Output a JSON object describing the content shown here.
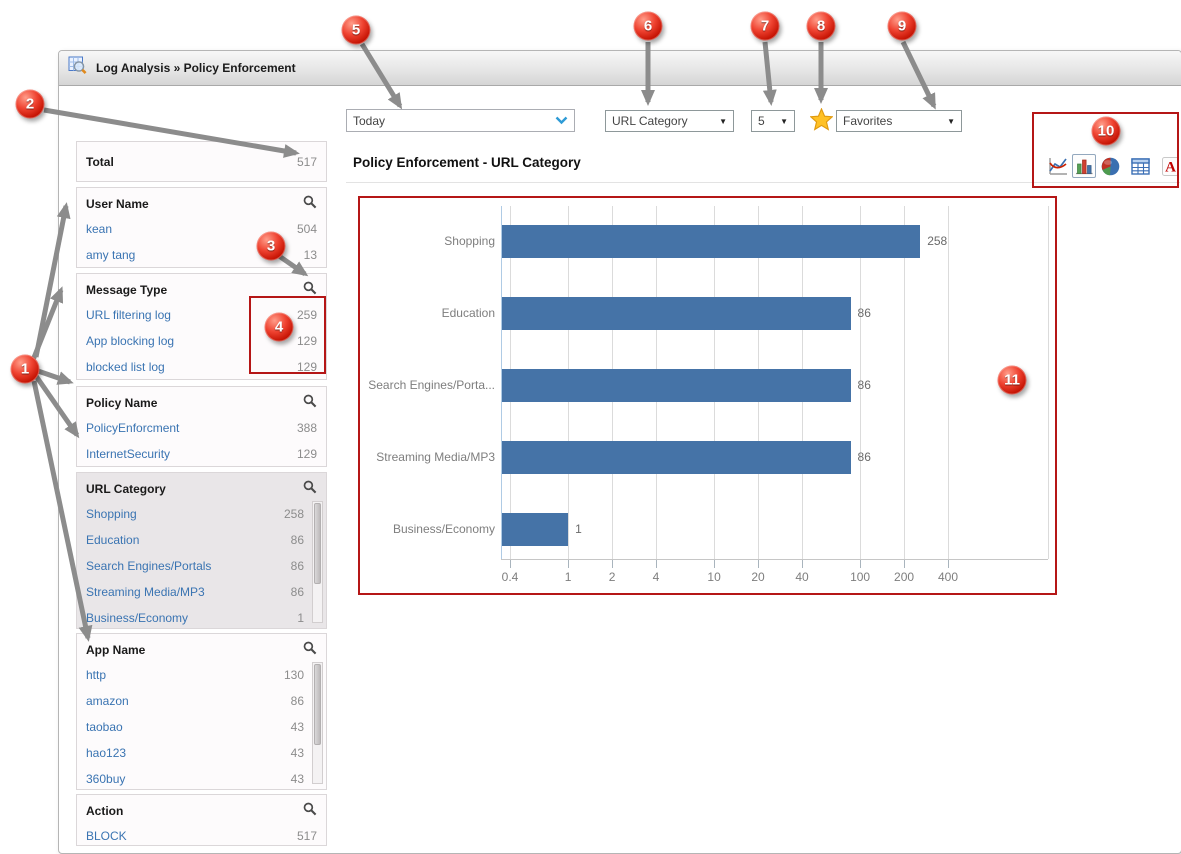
{
  "window": {
    "title": "Log Analysis » Policy Enforcement"
  },
  "toolbar": {
    "time_range": {
      "value": "Today"
    },
    "category_select": {
      "value": "URL Category"
    },
    "count_select": {
      "value": "5"
    },
    "favorites_select": {
      "value": "Favorites"
    },
    "star_icon": "favorite-star",
    "chart_icons": [
      {
        "name": "line-chart-icon",
        "selected": false
      },
      {
        "name": "bar-chart-icon",
        "selected": true
      },
      {
        "name": "pie-chart-icon",
        "selected": false
      },
      {
        "name": "table-view-icon",
        "selected": false
      },
      {
        "name": "pdf-export-icon",
        "selected": false
      }
    ]
  },
  "sidebar": {
    "total": {
      "label": "Total",
      "value": "517"
    },
    "sections": [
      {
        "title": "User Name",
        "has_search": true,
        "selected": false,
        "scrollbar": false,
        "items": [
          {
            "label": "kean",
            "value": "504"
          },
          {
            "label": "amy tang",
            "value": "13"
          }
        ]
      },
      {
        "title": "Message Type",
        "has_search": true,
        "selected": false,
        "scrollbar": false,
        "items": [
          {
            "label": "URL filtering log",
            "value": "259"
          },
          {
            "label": "App blocking log",
            "value": "129"
          },
          {
            "label": "blocked list log",
            "value": "129"
          }
        ]
      },
      {
        "title": "Policy Name",
        "has_search": true,
        "selected": false,
        "scrollbar": false,
        "items": [
          {
            "label": "PolicyEnforcment",
            "value": "388"
          },
          {
            "label": "InternetSecurity",
            "value": "129"
          }
        ]
      },
      {
        "title": "URL Category",
        "has_search": true,
        "selected": true,
        "scrollbar": true,
        "items": [
          {
            "label": "Shopping",
            "value": "258"
          },
          {
            "label": "Education",
            "value": "86"
          },
          {
            "label": "Search Engines/Portals",
            "value": "86"
          },
          {
            "label": "Streaming Media/MP3",
            "value": "86"
          },
          {
            "label": "Business/Economy",
            "value": "1"
          }
        ]
      },
      {
        "title": "App Name",
        "has_search": true,
        "selected": false,
        "scrollbar": true,
        "items": [
          {
            "label": "http",
            "value": "130"
          },
          {
            "label": "amazon",
            "value": "86"
          },
          {
            "label": "taobao",
            "value": "43"
          },
          {
            "label": "hao123",
            "value": "43"
          },
          {
            "label": "360buy",
            "value": "43"
          }
        ]
      },
      {
        "title": "Action",
        "has_search": true,
        "selected": false,
        "scrollbar": false,
        "items": [
          {
            "label": "BLOCK",
            "value": "517"
          }
        ]
      }
    ]
  },
  "main": {
    "section_title": "Policy Enforcement - URL Category"
  },
  "chart_data": {
    "type": "bar",
    "orientation": "horizontal",
    "title": "Policy Enforcement - URL Category",
    "categories": [
      "Shopping",
      "Education",
      "Search Engines/Porta...",
      "Streaming Media/MP3",
      "Business/Economy"
    ],
    "values": [
      258,
      86,
      86,
      86,
      1
    ],
    "xscale": "log",
    "x_ticks": [
      0.4,
      1,
      2,
      4,
      10,
      20,
      40,
      100,
      200,
      400
    ],
    "x_tick_labels": [
      "0.4",
      "1",
      "2",
      "4",
      "10",
      "20",
      "40",
      "100",
      "200",
      "400"
    ],
    "xlim": [
      0.35,
      600
    ],
    "bar_color": "#4573A7",
    "grid": true,
    "legend": false
  },
  "annotations": {
    "callouts": [
      {
        "label": "1"
      },
      {
        "label": "2"
      },
      {
        "label": "3"
      },
      {
        "label": "4"
      },
      {
        "label": "5"
      },
      {
        "label": "6"
      },
      {
        "label": "7"
      },
      {
        "label": "8"
      },
      {
        "label": "9"
      },
      {
        "label": "10"
      },
      {
        "label": "11"
      }
    ]
  },
  "colors": {
    "bar": "#4573A7",
    "link": "#3A74B2",
    "annotation_red": "#B51616",
    "badge_red": "#C21000",
    "star_yellow": "#FFC125",
    "selected_facet_bg": "#E9E6E8"
  }
}
